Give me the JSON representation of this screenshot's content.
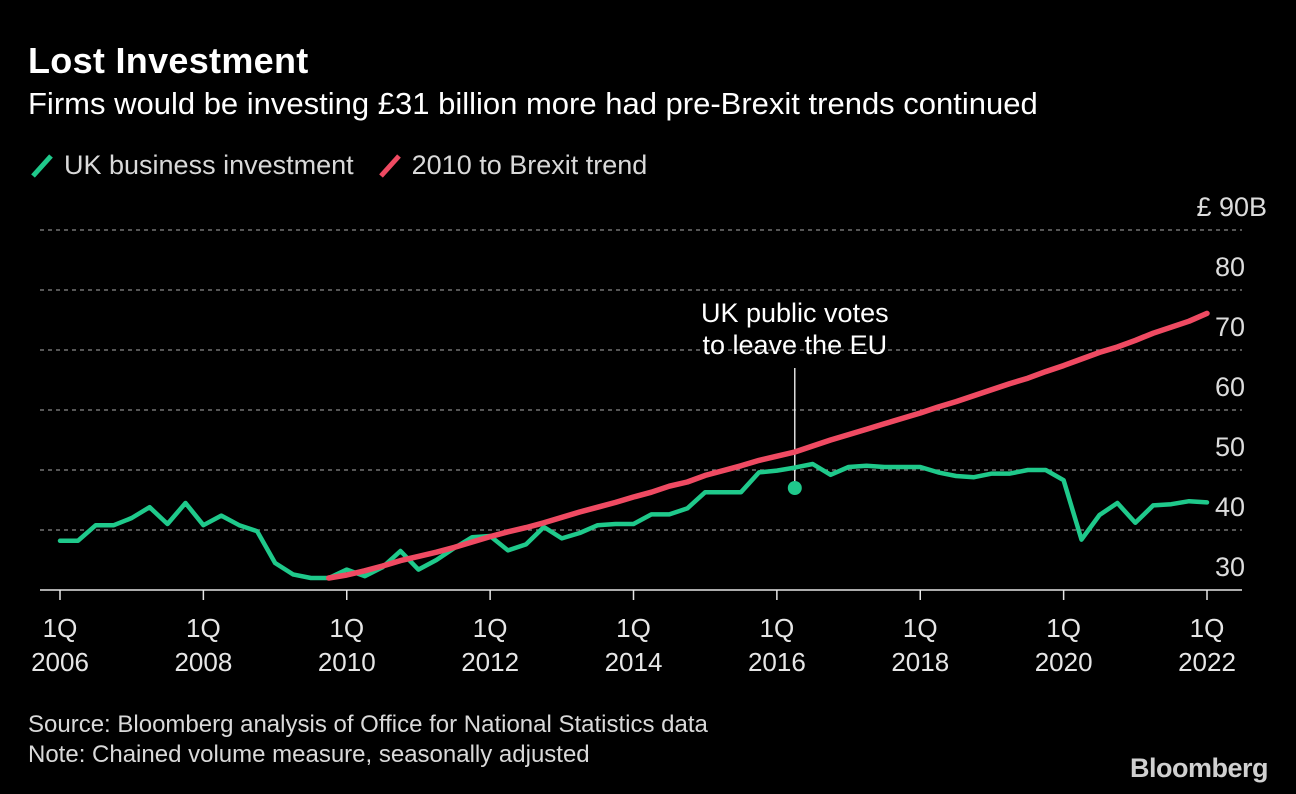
{
  "header": {
    "title": "Lost Investment",
    "subtitle": "Firms would be investing £31 billion more had pre-Brexit trends continued"
  },
  "legend": [
    {
      "label": "UK business investment",
      "color": "#1fc98b"
    },
    {
      "label": "2010 to Brexit trend",
      "color": "#ef4a62"
    }
  ],
  "footer": {
    "source": "Source: Bloomberg analysis of Office for National Statistics data",
    "note": "Note: Chained volume measure, seasonally adjusted",
    "brand": "Bloomberg"
  },
  "chart_data": {
    "type": "line",
    "ylim": [
      30,
      90
    ],
    "y_ticks": [
      30,
      40,
      50,
      60,
      70,
      80,
      90
    ],
    "y_tick_labels": [
      "30",
      "40",
      "50",
      "60",
      "70",
      "80",
      "£ 90B"
    ],
    "x_tick_labels": [
      [
        "1Q",
        "2006"
      ],
      [
        "1Q",
        "2008"
      ],
      [
        "1Q",
        "2010"
      ],
      [
        "1Q",
        "2012"
      ],
      [
        "1Q",
        "2014"
      ],
      [
        "1Q",
        "2016"
      ],
      [
        "1Q",
        "2018"
      ],
      [
        "1Q",
        "2020"
      ],
      [
        "1Q",
        "2022"
      ]
    ],
    "x_tick_years": [
      2006,
      2008,
      2010,
      2012,
      2014,
      2016,
      2018,
      2020,
      2022
    ],
    "grid": true,
    "annotation": {
      "lines": [
        "UK public votes",
        "to leave the EU"
      ],
      "x": 2016.25,
      "y": 47.0
    },
    "series": [
      {
        "name": "UK business investment",
        "color": "#1fc98b",
        "x": [
          2006.0,
          2006.25,
          2006.5,
          2006.75,
          2007.0,
          2007.25,
          2007.5,
          2007.75,
          2008.0,
          2008.25,
          2008.5,
          2008.75,
          2009.0,
          2009.25,
          2009.5,
          2009.75,
          2010.0,
          2010.25,
          2010.5,
          2010.75,
          2011.0,
          2011.25,
          2011.5,
          2011.75,
          2012.0,
          2012.25,
          2012.5,
          2012.75,
          2013.0,
          2013.25,
          2013.5,
          2013.75,
          2014.0,
          2014.25,
          2014.5,
          2014.75,
          2015.0,
          2015.25,
          2015.5,
          2015.75,
          2016.0,
          2016.25,
          2016.5,
          2016.75,
          2017.0,
          2017.25,
          2017.5,
          2017.75,
          2018.0,
          2018.25,
          2018.5,
          2018.75,
          2019.0,
          2019.25,
          2019.5,
          2019.75,
          2020.0,
          2020.25,
          2020.5,
          2020.75,
          2021.0,
          2021.25,
          2021.5,
          2021.75,
          2022.0
        ],
        "values": [
          38.2,
          38.2,
          40.8,
          40.8,
          42.0,
          43.8,
          41.0,
          44.5,
          40.8,
          42.4,
          40.8,
          39.8,
          34.5,
          32.6,
          32.0,
          32.0,
          33.4,
          32.3,
          33.8,
          36.5,
          33.4,
          35.0,
          37.0,
          38.8,
          39.0,
          36.6,
          37.6,
          40.5,
          38.6,
          39.5,
          40.8,
          41.0,
          41.0,
          42.6,
          42.6,
          43.6,
          46.3,
          46.3,
          46.3,
          49.6,
          49.9,
          50.4,
          51.0,
          49.2,
          50.5,
          50.7,
          50.5,
          50.5,
          50.5,
          49.6,
          49.0,
          48.8,
          49.4,
          49.4,
          50.0,
          50.0,
          48.3,
          38.4,
          42.5,
          44.5,
          41.2,
          44.1,
          44.3,
          44.8,
          44.6
        ]
      },
      {
        "name": "2010 to Brexit trend",
        "color": "#ef4a62",
        "x": [
          2009.75,
          2010.0,
          2010.25,
          2010.5,
          2010.75,
          2011.0,
          2011.25,
          2011.5,
          2011.75,
          2012.0,
          2012.25,
          2012.5,
          2012.75,
          2013.0,
          2013.25,
          2013.5,
          2013.75,
          2014.0,
          2014.25,
          2014.5,
          2014.75,
          2015.0,
          2015.25,
          2015.5,
          2015.75,
          2016.0,
          2016.25,
          2016.5,
          2016.75,
          2017.0,
          2017.25,
          2017.5,
          2017.75,
          2018.0,
          2018.25,
          2018.5,
          2018.75,
          2019.0,
          2019.25,
          2019.5,
          2019.75,
          2020.0,
          2020.25,
          2020.5,
          2020.75,
          2021.0,
          2021.25,
          2021.5,
          2021.75,
          2022.0
        ],
        "values": [
          32.0,
          32.5,
          33.2,
          34.0,
          34.9,
          35.6,
          36.3,
          37.1,
          38.0,
          38.9,
          39.7,
          40.4,
          41.2,
          42.1,
          43.0,
          43.8,
          44.6,
          45.5,
          46.3,
          47.3,
          48.0,
          49.1,
          49.9,
          50.7,
          51.6,
          52.3,
          53.0,
          54.0,
          55.0,
          55.9,
          56.8,
          57.7,
          58.6,
          59.5,
          60.5,
          61.4,
          62.4,
          63.4,
          64.4,
          65.3,
          66.4,
          67.4,
          68.5,
          69.6,
          70.5,
          71.6,
          72.8,
          73.8,
          74.8,
          76.1
        ]
      }
    ]
  }
}
